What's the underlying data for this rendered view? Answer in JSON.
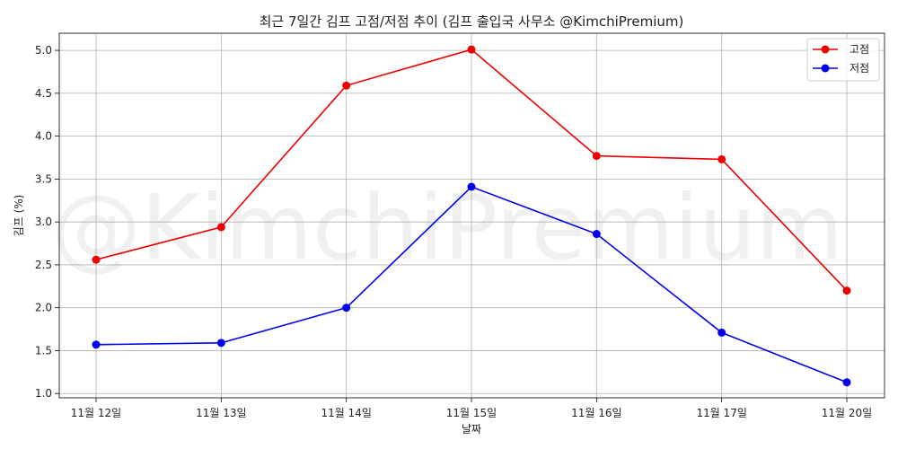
{
  "chart_data": {
    "type": "line",
    "title": "최근 7일간 김프 고점/저점 추이 (김프 출입국 사무소 @KimchiPremium)",
    "xlabel": "날짜",
    "ylabel": "김프 (%)",
    "categories": [
      "11월 12일",
      "11월 13일",
      "11월 14일",
      "11월 15일",
      "11월 16일",
      "11월 17일",
      "11월 20일"
    ],
    "series": [
      {
        "name": "고점",
        "color": "#ee0000",
        "values": [
          2.56,
          2.94,
          4.59,
          5.01,
          3.77,
          3.73,
          2.2
        ]
      },
      {
        "name": "저점",
        "color": "#0000ee",
        "values": [
          1.57,
          1.59,
          2.0,
          3.41,
          2.86,
          1.71,
          1.13
        ]
      }
    ],
    "ylim": [
      0.95,
      5.2
    ],
    "yticks": [
      "1.0",
      "1.5",
      "2.0",
      "2.5",
      "3.0",
      "3.5",
      "4.0",
      "4.5",
      "5.0"
    ],
    "grid": true,
    "legend_position": "top-right",
    "watermark": "@KimchiPremium"
  }
}
